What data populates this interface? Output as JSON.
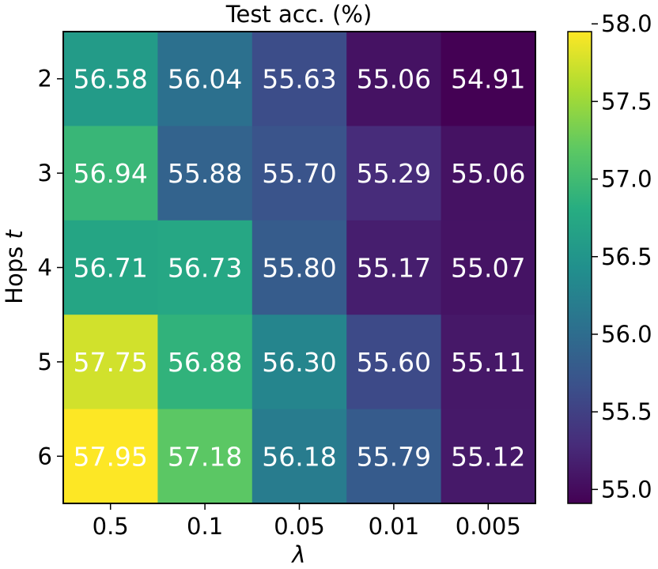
{
  "chart_data": {
    "type": "heatmap",
    "title": "Test acc. (%)",
    "xlabel": "λ",
    "ylabel": "Hops t",
    "ylabel_main": "Hops ",
    "ylabel_italic": "t",
    "x_categories": [
      "0.5",
      "0.1",
      "0.05",
      "0.01",
      "0.005"
    ],
    "y_categories": [
      "2",
      "3",
      "4",
      "5",
      "6"
    ],
    "values": [
      [
        56.58,
        56.04,
        55.63,
        55.06,
        54.91
      ],
      [
        56.94,
        55.88,
        55.7,
        55.29,
        55.06
      ],
      [
        56.71,
        56.73,
        55.8,
        55.17,
        55.07
      ],
      [
        57.75,
        56.88,
        56.3,
        55.6,
        55.11
      ],
      [
        57.95,
        57.18,
        56.18,
        55.79,
        55.12
      ]
    ],
    "colormap": "viridis",
    "color_range": [
      54.91,
      57.95
    ],
    "colorbar_ticks": [
      "55.0",
      "55.5",
      "56.0",
      "56.5",
      "57.0",
      "57.5",
      "58.0"
    ],
    "annotation_color": "#ffffff"
  }
}
